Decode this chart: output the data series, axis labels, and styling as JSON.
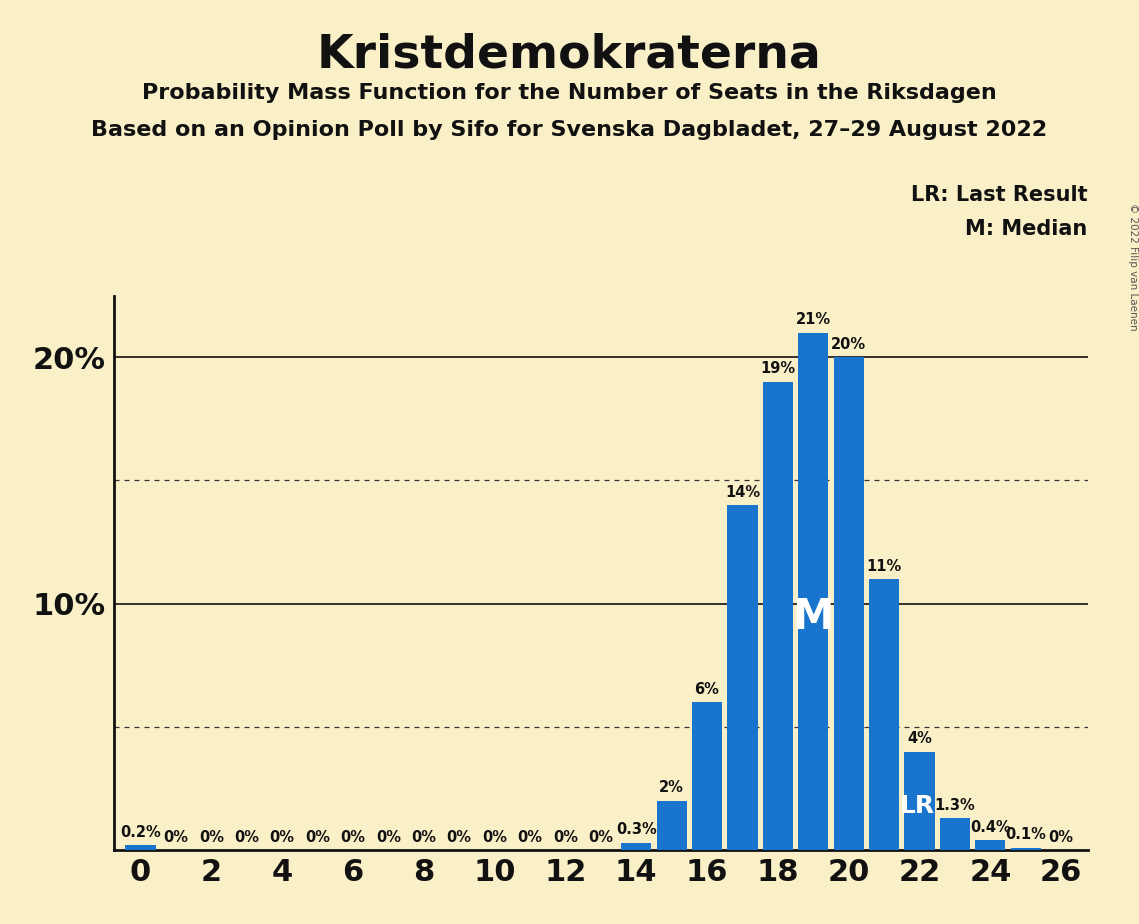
{
  "title": "Kristdemokraterna",
  "subtitle1": "Probability Mass Function for the Number of Seats in the Riksdagen",
  "subtitle2": "Based on an Opinion Poll by Sifo for Svenska Dagbladet, 27–29 August 2022",
  "copyright": "© 2022 Filip van Laenen",
  "seats": [
    0,
    1,
    2,
    3,
    4,
    5,
    6,
    7,
    8,
    9,
    10,
    11,
    12,
    13,
    14,
    15,
    16,
    17,
    18,
    19,
    20,
    21,
    22,
    23,
    24,
    25,
    26
  ],
  "probabilities": [
    0.2,
    0.0,
    0.0,
    0.0,
    0.0,
    0.0,
    0.0,
    0.0,
    0.0,
    0.0,
    0.0,
    0.0,
    0.0,
    0.0,
    0.3,
    2.0,
    6.0,
    14.0,
    19.0,
    21.0,
    20.0,
    11.0,
    4.0,
    1.3,
    0.4,
    0.1,
    0.0
  ],
  "labels": [
    "0.2%",
    "0%",
    "0%",
    "0%",
    "0%",
    "0%",
    "0%",
    "0%",
    "0%",
    "0%",
    "0%",
    "0%",
    "0%",
    "0%",
    "0.3%",
    "2%",
    "6%",
    "14%",
    "19%",
    "21%",
    "20%",
    "11%",
    "4%",
    "1.3%",
    "0.4%",
    "0.1%",
    "0%"
  ],
  "bar_color": "#1874CD",
  "background_color": "#FAF0C8",
  "median_seat": 19,
  "last_result_seat": 22,
  "dotted_grid_values": [
    5,
    15
  ],
  "solid_grid_values": [
    10,
    20
  ],
  "legend_lr": "LR: Last Result",
  "legend_m": "M: Median",
  "title_fontsize": 34,
  "subtitle_fontsize": 16,
  "label_fontsize": 10.5,
  "ytick_fontsize": 22,
  "xtick_fontsize": 22
}
